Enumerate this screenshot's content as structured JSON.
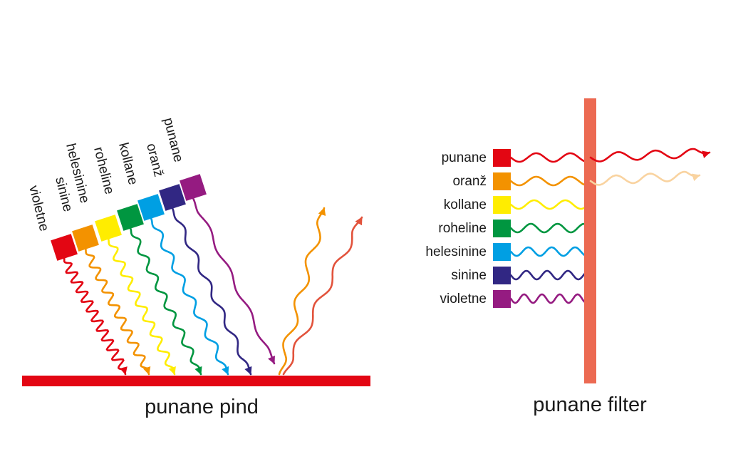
{
  "colors": [
    {
      "name": "punane",
      "hex": "#e30613"
    },
    {
      "name": "oranž",
      "hex": "#f39200"
    },
    {
      "name": "kollane",
      "hex": "#ffed00"
    },
    {
      "name": "roheline",
      "hex": "#009640"
    },
    {
      "name": "helesinine",
      "hex": "#009fe3"
    },
    {
      "name": "sinine",
      "hex": "#312783"
    },
    {
      "name": "violetne",
      "hex": "#951b81"
    }
  ],
  "captions": {
    "left": "punane pind",
    "right": "punane filter"
  },
  "reflected_colors": {
    "red": "#e2533c",
    "orange": "#f39200"
  },
  "filter": {
    "bar_color": "#ec6a52",
    "passed_orange": "#f9d3a0"
  }
}
